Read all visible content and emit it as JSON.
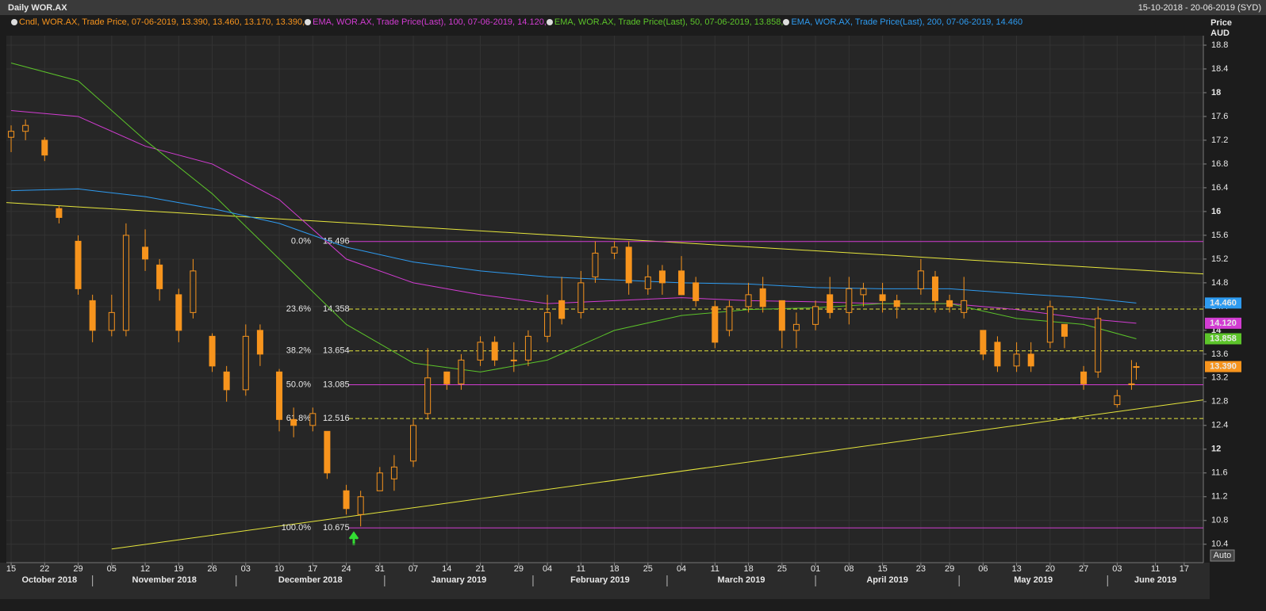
{
  "chart_data": {
    "type": "candlestick",
    "title": "Daily WOR.AX",
    "date_range": "15-10-2018 - 20-06-2019 (SYD)",
    "y_label_top": "Price",
    "y_label_bottom": "AUD",
    "auto_button": "Auto",
    "candle_legend": "Cndl, WOR.AX, Trade Price, 07-06-2019, 13.390, 13.460, 13.170, 13.390,",
    "candle_color": "#f7941d",
    "close_label": "13.390",
    "x": [
      "2018-10-15",
      "2018-10-18",
      "2018-10-22",
      "2018-10-25",
      "2018-10-29",
      "2018-11-01",
      "2018-11-05",
      "2018-11-08",
      "2018-11-12",
      "2018-11-15",
      "2018-11-19",
      "2018-11-22",
      "2018-11-26",
      "2018-11-29",
      "2018-12-03",
      "2018-12-06",
      "2018-12-10",
      "2018-12-13",
      "2018-12-17",
      "2018-12-20",
      "2018-12-24",
      "2018-12-27",
      "2018-12-31",
      "2019-01-03",
      "2019-01-07",
      "2019-01-10",
      "2019-01-14",
      "2019-01-17",
      "2019-01-21",
      "2019-01-24",
      "2019-01-28",
      "2019-01-31",
      "2019-02-04",
      "2019-02-07",
      "2019-02-11",
      "2019-02-14",
      "2019-02-18",
      "2019-02-21",
      "2019-02-25",
      "2019-02-28",
      "2019-03-04",
      "2019-03-07",
      "2019-03-11",
      "2019-03-14",
      "2019-03-18",
      "2019-03-21",
      "2019-03-25",
      "2019-03-28",
      "2019-04-01",
      "2019-04-04",
      "2019-04-08",
      "2019-04-11",
      "2019-04-15",
      "2019-04-18",
      "2019-04-23",
      "2019-04-26",
      "2019-04-29",
      "2019-05-02",
      "2019-05-06",
      "2019-05-09",
      "2019-05-13",
      "2019-05-16",
      "2019-05-20",
      "2019-05-23",
      "2019-05-27",
      "2019-05-30",
      "2019-06-03",
      "2019-06-06",
      "2019-06-07"
    ],
    "open": [
      17.25,
      17.35,
      17.2,
      16.05,
      15.5,
      14.5,
      14.0,
      14.0,
      15.4,
      15.1,
      14.6,
      14.3,
      13.9,
      13.3,
      13.0,
      14.0,
      13.3,
      12.5,
      12.4,
      12.3,
      11.3,
      10.9,
      11.3,
      11.5,
      11.8,
      12.6,
      13.3,
      13.1,
      13.5,
      13.8,
      13.5,
      13.5,
      13.9,
      14.5,
      14.3,
      14.9,
      15.3,
      15.4,
      14.7,
      15.0,
      15.0,
      14.8,
      14.4,
      14.0,
      14.4,
      14.7,
      14.5,
      14.0,
      14.1,
      14.6,
      14.3,
      14.6,
      14.6,
      14.5,
      14.7,
      14.9,
      14.5,
      14.3,
      14.0,
      13.8,
      13.4,
      13.6,
      13.8,
      14.1,
      13.3,
      13.3,
      12.75,
      13.1,
      13.39
    ],
    "high": [
      17.45,
      17.55,
      17.25,
      16.1,
      15.6,
      14.6,
      14.6,
      15.8,
      15.7,
      15.2,
      14.7,
      15.2,
      13.95,
      13.4,
      14.1,
      14.1,
      13.35,
      12.7,
      12.7,
      12.3,
      11.4,
      11.3,
      11.7,
      11.9,
      12.5,
      13.7,
      13.3,
      13.6,
      13.9,
      13.9,
      13.8,
      14.0,
      14.6,
      14.9,
      15.0,
      15.5,
      15.5,
      15.5,
      15.1,
      15.1,
      15.25,
      14.9,
      14.5,
      14.5,
      14.8,
      14.9,
      14.5,
      14.3,
      14.5,
      14.9,
      14.9,
      14.8,
      14.8,
      14.6,
      15.2,
      15.0,
      14.6,
      14.9,
      14.0,
      13.9,
      13.8,
      13.8,
      14.5,
      14.1,
      13.4,
      14.4,
      13.0,
      13.5,
      13.46
    ],
    "low": [
      17.0,
      17.2,
      16.85,
      15.8,
      14.6,
      13.8,
      13.9,
      13.9,
      15.0,
      14.5,
      13.8,
      14.2,
      13.3,
      12.8,
      12.9,
      13.4,
      12.3,
      12.2,
      12.3,
      11.5,
      10.9,
      10.7,
      11.3,
      11.3,
      11.7,
      12.5,
      13.0,
      13.0,
      13.4,
      13.4,
      13.3,
      13.4,
      13.8,
      14.1,
      14.2,
      14.8,
      15.2,
      14.6,
      14.6,
      14.6,
      14.6,
      14.4,
      13.7,
      13.9,
      14.3,
      14.3,
      13.7,
      13.7,
      14.0,
      14.2,
      14.1,
      14.4,
      14.3,
      14.2,
      14.6,
      14.3,
      14.3,
      14.2,
      13.5,
      13.3,
      13.3,
      13.3,
      13.7,
      13.7,
      13.0,
      13.2,
      12.7,
      13.0,
      13.17
    ],
    "close": [
      17.35,
      17.45,
      16.95,
      15.9,
      14.7,
      14.0,
      14.3,
      15.6,
      15.2,
      14.7,
      14.0,
      15.0,
      13.4,
      13.0,
      13.9,
      13.6,
      12.5,
      12.4,
      12.6,
      11.6,
      11.0,
      11.2,
      11.6,
      11.7,
      12.4,
      13.2,
      13.1,
      13.5,
      13.8,
      13.5,
      13.5,
      13.9,
      14.3,
      14.2,
      14.8,
      15.3,
      15.4,
      14.8,
      14.9,
      14.8,
      14.6,
      14.5,
      13.8,
      14.4,
      14.6,
      14.4,
      14.0,
      14.1,
      14.4,
      14.3,
      14.7,
      14.7,
      14.5,
      14.4,
      15.0,
      14.5,
      14.4,
      14.5,
      13.6,
      13.4,
      13.6,
      13.4,
      14.4,
      13.9,
      13.1,
      14.2,
      12.9,
      13.1,
      13.39
    ],
    "series": [
      {
        "name": "EMA, WOR.AX, Trade Price(Last), 100, 07-06-2019, 14.120,",
        "color": "#d23cd2",
        "last_label": "14.120",
        "x": [
          "2018-10-15",
          "2018-10-29",
          "2018-11-12",
          "2018-11-26",
          "2018-12-10",
          "2018-12-24",
          "2019-01-07",
          "2019-01-21",
          "2019-02-04",
          "2019-02-18",
          "2019-03-04",
          "2019-03-18",
          "2019-04-01",
          "2019-04-15",
          "2019-04-29",
          "2019-05-13",
          "2019-05-27",
          "2019-06-07"
        ],
        "values": [
          17.7,
          17.6,
          17.1,
          16.8,
          16.2,
          15.2,
          14.8,
          14.6,
          14.45,
          14.5,
          14.55,
          14.5,
          14.48,
          14.45,
          14.45,
          14.35,
          14.2,
          14.12
        ]
      },
      {
        "name": "EMA, WOR.AX, Trade Price(Last), 50, 07-06-2019, 13.858,",
        "color": "#5cc42a",
        "last_label": "13.858",
        "x": [
          "2018-10-15",
          "2018-10-29",
          "2018-11-12",
          "2018-11-26",
          "2018-12-10",
          "2018-12-24",
          "2019-01-07",
          "2019-01-21",
          "2019-02-04",
          "2019-02-18",
          "2019-03-04",
          "2019-03-18",
          "2019-04-01",
          "2019-04-15",
          "2019-04-29",
          "2019-05-13",
          "2019-05-27",
          "2019-06-07"
        ],
        "values": [
          18.5,
          18.2,
          17.2,
          16.3,
          15.2,
          14.1,
          13.45,
          13.3,
          13.5,
          14.0,
          14.25,
          14.35,
          14.38,
          14.45,
          14.45,
          14.2,
          14.1,
          13.858
        ]
      },
      {
        "name": "EMA, WOR.AX, Trade Price(Last), 200, 07-06-2019, 14.460",
        "color": "#2e9bf0",
        "last_label": "14.460",
        "x": [
          "2018-10-15",
          "2018-10-29",
          "2018-11-12",
          "2018-11-26",
          "2018-12-10",
          "2018-12-24",
          "2019-01-07",
          "2019-01-21",
          "2019-02-04",
          "2019-02-18",
          "2019-03-04",
          "2019-03-18",
          "2019-04-01",
          "2019-04-15",
          "2019-04-29",
          "2019-05-13",
          "2019-05-27",
          "2019-06-07"
        ],
        "values": [
          16.35,
          16.38,
          16.25,
          16.05,
          15.8,
          15.4,
          15.15,
          15.0,
          14.9,
          14.85,
          14.8,
          14.78,
          14.72,
          14.7,
          14.7,
          14.62,
          14.55,
          14.46
        ]
      }
    ],
    "fib": [
      {
        "pct": "0.0%",
        "value": 15.496,
        "color": "#d23cd2",
        "dashed": false
      },
      {
        "pct": "23.6%",
        "value": 14.358,
        "color": "#e6e63c",
        "dashed": true
      },
      {
        "pct": "38.2%",
        "value": 13.654,
        "color": "#e6e63c",
        "dashed": true
      },
      {
        "pct": "50.0%",
        "value": 13.085,
        "color": "#d23cd2",
        "dashed": false
      },
      {
        "pct": "61.8%",
        "value": 12.516,
        "color": "#e6e63c",
        "dashed": true
      },
      {
        "pct": "100.0%",
        "value": 10.675,
        "color": "#d23cd2",
        "dashed": false
      }
    ],
    "trendlines": [
      {
        "color": "#e6e63c",
        "x": [
          "2018-10-14",
          "2019-06-21"
        ],
        "values": [
          16.15,
          14.95
        ]
      },
      {
        "color": "#e6e63c",
        "x": [
          "2018-11-05",
          "2019-06-21"
        ],
        "values": [
          10.32,
          12.83
        ]
      }
    ],
    "xlim": [
      "2018-10-14",
      "2019-06-21"
    ],
    "ylim": [
      10.09,
      18.96
    ],
    "yticks": [
      10.4,
      10.8,
      11.2,
      11.6,
      12,
      12.4,
      12.8,
      13.2,
      13.6,
      14,
      14.4,
      14.8,
      15.2,
      15.6,
      16,
      16.4,
      16.8,
      17.2,
      17.6,
      18,
      18.4,
      18.8
    ],
    "xticks": [
      {
        "value": "2018-10-15",
        "label": "15"
      },
      {
        "value": "2018-10-22",
        "label": "22"
      },
      {
        "value": "2018-10-29",
        "label": "29"
      },
      {
        "value": "2018-11-05",
        "label": "05"
      },
      {
        "value": "2018-11-12",
        "label": "12"
      },
      {
        "value": "2018-11-19",
        "label": "19"
      },
      {
        "value": "2018-11-26",
        "label": "26"
      },
      {
        "value": "2018-12-03",
        "label": "03"
      },
      {
        "value": "2018-12-10",
        "label": "10"
      },
      {
        "value": "2018-12-17",
        "label": "17"
      },
      {
        "value": "2018-12-24",
        "label": "24"
      },
      {
        "value": "2018-12-31",
        "label": "31"
      },
      {
        "value": "2019-01-07",
        "label": "07"
      },
      {
        "value": "2019-01-14",
        "label": "14"
      },
      {
        "value": "2019-01-21",
        "label": "21"
      },
      {
        "value": "2019-01-29",
        "label": "29"
      },
      {
        "value": "2019-02-04",
        "label": "04"
      },
      {
        "value": "2019-02-11",
        "label": "11"
      },
      {
        "value": "2019-02-18",
        "label": "18"
      },
      {
        "value": "2019-02-25",
        "label": "25"
      },
      {
        "value": "2019-03-04",
        "label": "04"
      },
      {
        "value": "2019-03-11",
        "label": "11"
      },
      {
        "value": "2019-03-18",
        "label": "18"
      },
      {
        "value": "2019-03-25",
        "label": "25"
      },
      {
        "value": "2019-04-01",
        "label": "01"
      },
      {
        "value": "2019-04-08",
        "label": "08"
      },
      {
        "value": "2019-04-15",
        "label": "15"
      },
      {
        "value": "2019-04-23",
        "label": "23"
      },
      {
        "value": "2019-04-29",
        "label": "29"
      },
      {
        "value": "2019-05-06",
        "label": "06"
      },
      {
        "value": "2019-05-13",
        "label": "13"
      },
      {
        "value": "2019-05-20",
        "label": "20"
      },
      {
        "value": "2019-05-27",
        "label": "27"
      },
      {
        "value": "2019-06-03",
        "label": "03"
      },
      {
        "value": "2019-06-11",
        "label": "11"
      },
      {
        "value": "2019-06-17",
        "label": "17"
      }
    ],
    "months": [
      {
        "value": "2018-10",
        "label": "October 2018"
      },
      {
        "value": "2018-11",
        "label": "November 2018"
      },
      {
        "value": "2018-12",
        "label": "December 2018"
      },
      {
        "value": "2019-01",
        "label": "January 2019"
      },
      {
        "value": "2019-02",
        "label": "February 2019"
      },
      {
        "value": "2019-03",
        "label": "March 2019"
      },
      {
        "value": "2019-04",
        "label": "April 2019"
      },
      {
        "value": "2019-05",
        "label": "May 2019"
      },
      {
        "value": "2019-06",
        "label": "June 2019"
      }
    ],
    "grid": true
  }
}
